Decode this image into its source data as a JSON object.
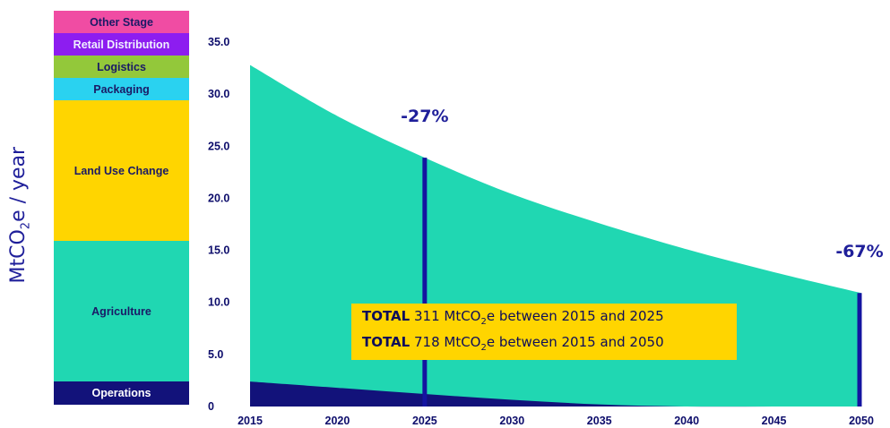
{
  "chart_data": {
    "type": "area",
    "ylabel": {
      "prefix": "MtCO",
      "sub": "2",
      "suffix": "e  / year"
    },
    "x": [
      2015,
      2020,
      2025,
      2030,
      2035,
      2040,
      2045,
      2050
    ],
    "xlim": [
      2015,
      2050
    ],
    "ylim": [
      0,
      35
    ],
    "y_ticks": [
      "0",
      "5.0",
      "10.0",
      "15.0",
      "20.0",
      "25.0",
      "30.0",
      "35.0"
    ],
    "series": [
      {
        "values": [
          32.8,
          27.9,
          23.9,
          20.4,
          17.6,
          15.1,
          12.9,
          10.9
        ],
        "color": "#20d7b2"
      },
      {
        "values": [
          2.4,
          1.8,
          1.2,
          0.65,
          0.2,
          0.0,
          0.0,
          0.0
        ],
        "color": "#12127a"
      }
    ],
    "markers": [
      {
        "x": 2025,
        "y": 23.9,
        "label": "-27%"
      },
      {
        "x": 2050,
        "y": 10.9,
        "label": "-67%"
      }
    ],
    "legend_stack": [
      {
        "label": "Other Stage",
        "color": "#f04ca3",
        "text_color": "#1a1a66",
        "share": 0.057
      },
      {
        "label": "Retail Distribution",
        "color": "#8d1df0",
        "text_color": "#f0f0ff",
        "share": 0.057
      },
      {
        "label": "Logistics",
        "color": "#93c83a",
        "text_color": "#1a1a66",
        "share": 0.057
      },
      {
        "label": "Packaging",
        "color": "#2ad2f0",
        "text_color": "#1a1a66",
        "share": 0.057
      },
      {
        "label": "Land Use Change",
        "color": "#ffd500",
        "text_color": "#1a1a66",
        "share": 0.357
      },
      {
        "label": "Agriculture",
        "color": "#20d7b2",
        "text_color": "#1a1a66",
        "share": 0.357
      },
      {
        "label": "Operations",
        "color": "#12127a",
        "text_color": "#ffffff",
        "share": 0.058
      }
    ],
    "totals": [
      {
        "bold": "TOTAL",
        "pre": " 311 MtCO",
        "sub": "2",
        "post": "e between 2015 and 2025"
      },
      {
        "bold": "TOTAL",
        "pre": " 718 MtCO",
        "sub": "2",
        "post": "e between 2015 and 2050"
      }
    ]
  }
}
